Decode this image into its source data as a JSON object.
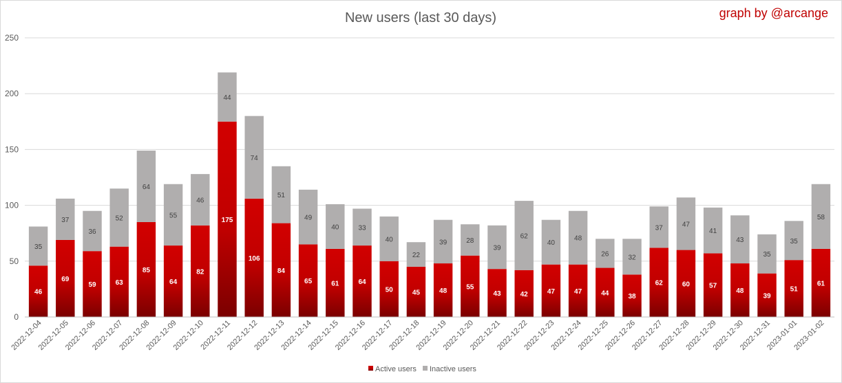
{
  "chart_data": {
    "type": "bar",
    "stacked": true,
    "title": "New users (last 30 days)",
    "credit": "graph by @arcange",
    "xlabel": "",
    "ylabel": "",
    "ylim": [
      0,
      250
    ],
    "yticks": [
      0,
      50,
      100,
      150,
      200,
      250
    ],
    "grid": true,
    "legend_position": "bottom",
    "categories": [
      "2022-12-04",
      "2022-12-05",
      "2022-12-06",
      "2022-12-07",
      "2022-12-08",
      "2022-12-09",
      "2022-12-10",
      "2022-12-11",
      "2022-12-12",
      "2022-12-13",
      "2022-12-14",
      "2022-12-15",
      "2022-12-16",
      "2022-12-17",
      "2022-12-18",
      "2022-12-19",
      "2022-12-20",
      "2022-12-21",
      "2022-12-22",
      "2022-12-23",
      "2022-12-24",
      "2022-12-25",
      "2022-12-26",
      "2022-12-27",
      "2022-12-28",
      "2022-12-29",
      "2022-12-30",
      "2022-12-31",
      "2023-01-01",
      "2023-01-02"
    ],
    "series": [
      {
        "name": "Active users",
        "color": "#c00000",
        "values": [
          46,
          69,
          59,
          63,
          85,
          64,
          82,
          175,
          106,
          84,
          65,
          61,
          64,
          50,
          45,
          48,
          55,
          43,
          42,
          47,
          47,
          44,
          38,
          62,
          60,
          57,
          48,
          39,
          51,
          61
        ]
      },
      {
        "name": "Inactive users",
        "color": "#b0aeae",
        "values": [
          35,
          37,
          36,
          52,
          64,
          55,
          46,
          44,
          74,
          51,
          49,
          40,
          33,
          40,
          22,
          39,
          28,
          39,
          62,
          40,
          48,
          26,
          32,
          37,
          47,
          41,
          43,
          35,
          35,
          58
        ]
      }
    ]
  }
}
